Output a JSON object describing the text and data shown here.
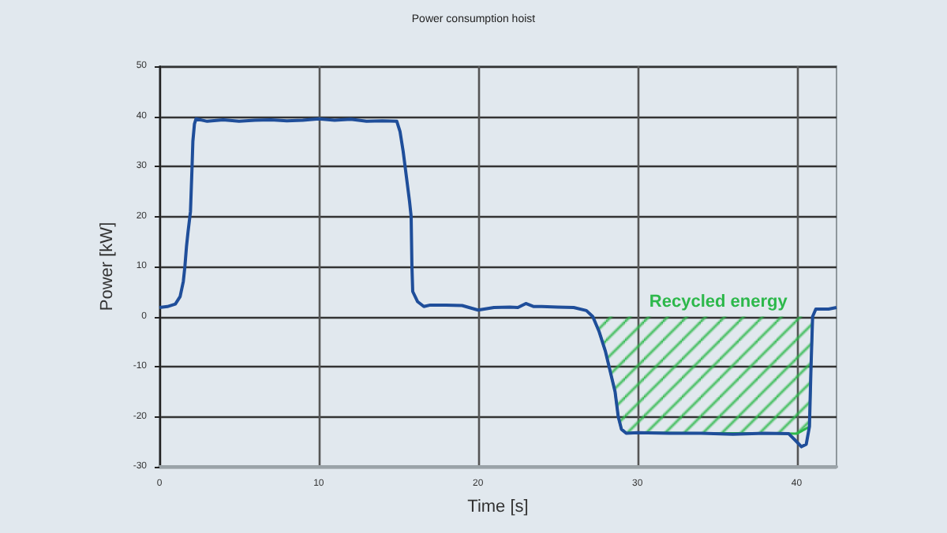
{
  "chart_data": {
    "type": "line",
    "title": "Power consumption hoist",
    "xlabel": "Time [s]",
    "ylabel": "Power [kW]",
    "xlim": [
      0,
      42.5
    ],
    "xticks": [
      0,
      10,
      20,
      30,
      40
    ],
    "ylim": [
      -30,
      50
    ],
    "yticks": [
      -30,
      -20,
      -10,
      0,
      10,
      20,
      30,
      40,
      50
    ],
    "grid": true,
    "marker": "none",
    "series": [
      {
        "type": "area",
        "name": "Recycled energy",
        "color": "#2db84b",
        "x": [
          27.2,
          27.6,
          28,
          28.3,
          28.6,
          28.8,
          29,
          29.3,
          30,
          34,
          38,
          40,
          40.8,
          40.9,
          41
        ],
        "values": [
          0,
          -3,
          -7,
          -11,
          -15,
          -20,
          -22.5,
          -23.3,
          -23.2,
          -23.3,
          -23.3,
          -23.4,
          -22,
          -10,
          0
        ]
      },
      {
        "color": "#1f4e9a",
        "x": [
          0,
          0.5,
          1,
          1.3,
          1.5,
          1.6,
          1.7,
          1.8,
          1.95,
          2.05,
          2.1,
          2.2,
          2.3,
          3,
          4,
          5,
          6,
          7,
          8,
          9,
          10,
          11,
          12,
          13,
          14,
          14.9,
          15.1,
          15.3,
          15.5,
          15.7,
          15.8,
          15.85,
          15.9,
          16.2,
          16.6,
          17,
          18,
          19,
          20,
          21,
          22,
          22.5,
          23,
          23.5,
          24,
          25,
          26,
          26.8,
          27.2,
          27.6,
          28,
          28.3,
          28.6,
          28.8,
          29,
          29.3,
          30,
          32,
          34,
          36,
          38,
          39.5,
          40,
          40.3,
          40.6,
          40.8,
          40.9,
          41,
          41.2,
          42,
          42.5
        ],
        "values": [
          1.8,
          2,
          2.5,
          4,
          7,
          10,
          14,
          17,
          21,
          30,
          35,
          38.5,
          39.5,
          39,
          39.3,
          39,
          39.2,
          39.3,
          39.1,
          39.2,
          39.5,
          39.2,
          39.4,
          39,
          39.1,
          39,
          37,
          33,
          28,
          23,
          20,
          10,
          5,
          3,
          2,
          2.3,
          2.3,
          2.2,
          1.3,
          1.8,
          1.9,
          1.8,
          2.6,
          2,
          2,
          1.9,
          1.8,
          1.2,
          0,
          -3,
          -7,
          -11,
          -15,
          -20,
          -22.5,
          -23.3,
          -23.2,
          -23.3,
          -23.3,
          -23.5,
          -23.3,
          -23.4,
          -25,
          -26,
          -25.5,
          -22,
          -10,
          0,
          1.5,
          1.5,
          1.8
        ]
      }
    ]
  }
}
